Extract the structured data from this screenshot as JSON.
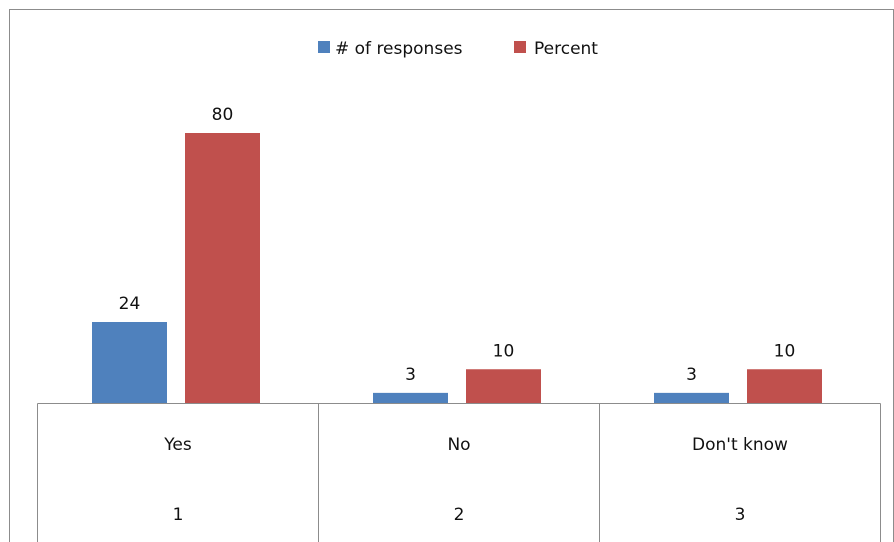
{
  "chart_data": {
    "type": "bar",
    "categories": [
      "Yes",
      "No",
      "Don't know"
    ],
    "category_index": [
      "1",
      "2",
      "3"
    ],
    "series": [
      {
        "name": "# of responses",
        "values": [
          24,
          3,
          3
        ],
        "color": "#4F81BD"
      },
      {
        "name": "Percent",
        "values": [
          80,
          10,
          10
        ],
        "color": "#C0504D"
      }
    ],
    "ylim": [
      0,
      80
    ],
    "grid": false,
    "legend_position": "top",
    "data_labels": true
  }
}
